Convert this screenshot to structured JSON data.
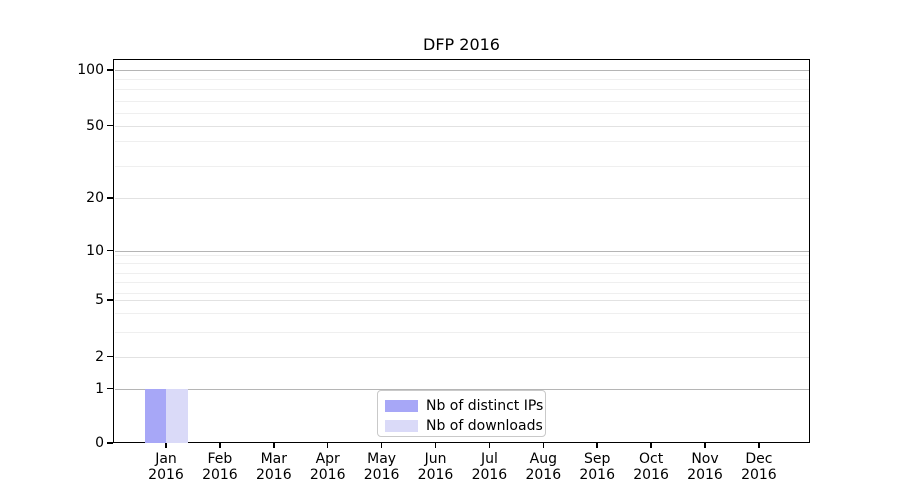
{
  "window": {
    "background": "#ffffff"
  },
  "chart_data": {
    "type": "bar",
    "title": "DFP 2016",
    "categories": [
      "Jan",
      "Feb",
      "Mar",
      "Apr",
      "May",
      "Jun",
      "Jul",
      "Aug",
      "Sep",
      "Oct",
      "Nov",
      "Dec"
    ],
    "category_year_line": "2016",
    "series": [
      {
        "name": "Nb of distinct IPs",
        "color": "#a7a7f7",
        "values": [
          1,
          0,
          0,
          0,
          0,
          0,
          0,
          0,
          0,
          0,
          0,
          0
        ]
      },
      {
        "name": "Nb of downloads",
        "color": "#dadaf8",
        "values": [
          1,
          0,
          0,
          0,
          0,
          0,
          0,
          0,
          0,
          0,
          0,
          0
        ]
      }
    ],
    "y_axis": {
      "scale": "symlog",
      "tick_labels": [
        "0",
        "1",
        "2",
        "5",
        "10",
        "20",
        "50",
        "100"
      ],
      "emphasized_ticks": [
        "1",
        "10",
        "100"
      ],
      "ylim": [
        0,
        112
      ]
    },
    "x_axis": {
      "tick_count": 12
    },
    "legend": {
      "position": "lower-center",
      "border_color": "#c9c9c9"
    },
    "grid": {
      "on": true,
      "decade_color": "#b5b5b5",
      "sub_color": "#e2e2e2",
      "minor_color": "#efefef"
    },
    "axes_color": "#000000"
  }
}
